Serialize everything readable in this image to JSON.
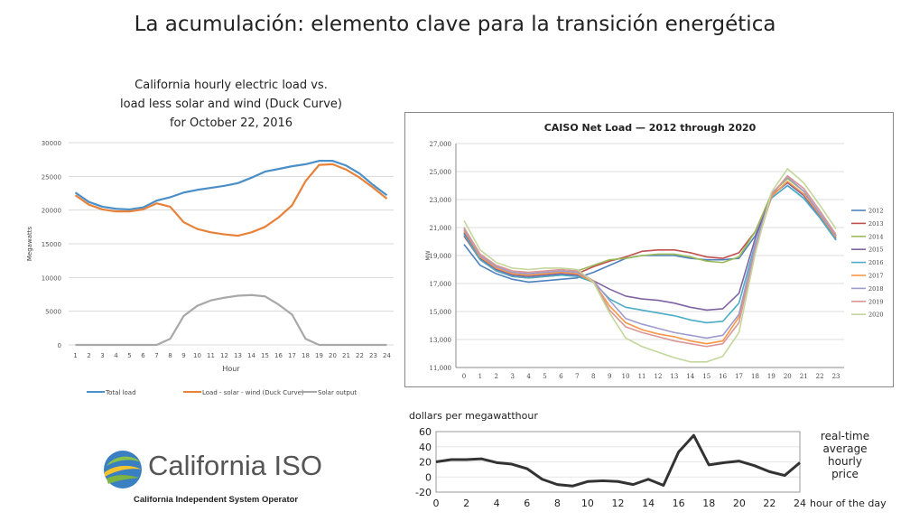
{
  "slide": {
    "title": "La acumulación: elemento clave para la transición energética"
  },
  "logo": {
    "name": "California ISO",
    "subtitle": "California Independent System Operator"
  },
  "chart_data": [
    {
      "type": "line",
      "title": [
        "California hourly electric load vs.",
        "load less solar and wind (Duck Curve)",
        "for October 22, 2016"
      ],
      "xlabel": "Hour",
      "ylabel": "Megawatts",
      "x": [
        1,
        2,
        3,
        4,
        5,
        6,
        7,
        8,
        9,
        10,
        11,
        12,
        13,
        14,
        15,
        16,
        17,
        18,
        19,
        20,
        21,
        22,
        23,
        24
      ],
      "ylim": [
        0,
        30000
      ],
      "yticks": [
        0,
        5000,
        10000,
        15000,
        20000,
        25000,
        30000
      ],
      "yticklabels": [
        "0",
        "5000",
        "10000",
        "15000",
        "20000",
        "25000",
        "30000"
      ],
      "legend_position": "bottom",
      "series": [
        {
          "name": "Total load",
          "color": "#4a8fc8",
          "values": [
            22600,
            21200,
            20500,
            20200,
            20100,
            20400,
            21400,
            21900,
            22600,
            23000,
            23300,
            23600,
            24000,
            24800,
            25700,
            26100,
            26500,
            26800,
            27300,
            27300,
            26600,
            25400,
            23700,
            22200
          ]
        },
        {
          "name": "Load - solar - wind (Duck Curve)",
          "color": "#e8823a",
          "values": [
            22200,
            20800,
            20100,
            19800,
            19800,
            20100,
            21000,
            20500,
            18200,
            17200,
            16700,
            16400,
            16200,
            16700,
            17500,
            18900,
            20700,
            24300,
            26700,
            26800,
            26000,
            24800,
            23300,
            21700
          ]
        },
        {
          "name": "Solar output",
          "color": "#a8a8a8",
          "values": [
            0,
            0,
            0,
            0,
            0,
            0,
            0,
            900,
            4300,
            5800,
            6600,
            7000,
            7300,
            7400,
            7200,
            6000,
            4500,
            900,
            0,
            0,
            0,
            0,
            0,
            0
          ]
        }
      ]
    },
    {
      "type": "line",
      "title": "CAISO Net Load — 2012 through 2020",
      "ylabel": "MW",
      "x": [
        0,
        1,
        2,
        3,
        4,
        5,
        6,
        7,
        8,
        9,
        10,
        11,
        12,
        13,
        14,
        15,
        16,
        17,
        18,
        19,
        20,
        21,
        22,
        23
      ],
      "ylim": [
        11000,
        27000
      ],
      "yticks": [
        11000,
        13000,
        15000,
        17000,
        19000,
        21000,
        23000,
        25000,
        27000
      ],
      "yticklabels": [
        "11,000",
        "13,000",
        "15,000",
        "17,000",
        "19,000",
        "21,000",
        "23,000",
        "25,000",
        "27,000"
      ],
      "legend_position": "right",
      "series": [
        {
          "name": "2012",
          "color": "#4f81bd",
          "values": [
            19800,
            18300,
            17700,
            17300,
            17100,
            17200,
            17300,
            17400,
            17800,
            18300,
            18800,
            19000,
            19000,
            19000,
            18800,
            18700,
            18700,
            18800,
            20400,
            23100,
            24000,
            23100,
            21700,
            20100
          ]
        },
        {
          "name": "2013",
          "color": "#c0504d",
          "values": [
            20400,
            18700,
            17900,
            17500,
            17400,
            17500,
            17600,
            17700,
            18200,
            18600,
            18900,
            19300,
            19400,
            19400,
            19200,
            18900,
            18800,
            19200,
            20700,
            23300,
            24200,
            23300,
            21900,
            20300
          ]
        },
        {
          "name": "2014",
          "color": "#9bbb59",
          "values": [
            20700,
            18900,
            18100,
            17700,
            17600,
            17700,
            17800,
            17900,
            18300,
            18700,
            18800,
            19000,
            19100,
            19100,
            18900,
            18600,
            18500,
            18900,
            20700,
            23400,
            24500,
            23600,
            22000,
            20400
          ]
        },
        {
          "name": "2015",
          "color": "#8064a2",
          "values": [
            20600,
            18800,
            18000,
            17600,
            17500,
            17600,
            17700,
            17600,
            17200,
            16600,
            16100,
            15900,
            15800,
            15600,
            15300,
            15100,
            15200,
            16300,
            20200,
            23300,
            24200,
            23300,
            21800,
            20200
          ]
        },
        {
          "name": "2016",
          "color": "#4bacc6",
          "values": [
            20500,
            18700,
            17900,
            17500,
            17400,
            17500,
            17600,
            17500,
            17100,
            15900,
            15300,
            15100,
            14900,
            14700,
            14400,
            14200,
            14300,
            15600,
            19800,
            23100,
            24000,
            23100,
            21700,
            20100
          ]
        },
        {
          "name": "2017",
          "color": "#f79646",
          "values": [
            20800,
            18900,
            18100,
            17700,
            17600,
            17700,
            17800,
            17700,
            17100,
            15400,
            14200,
            13700,
            13400,
            13200,
            12900,
            12700,
            12900,
            14600,
            19400,
            23200,
            24300,
            23400,
            21900,
            20300
          ]
        },
        {
          "name": "2018",
          "color": "#9c9ccf",
          "values": [
            20900,
            19000,
            18200,
            17800,
            17700,
            17800,
            17900,
            17800,
            17200,
            15800,
            14500,
            14100,
            13800,
            13500,
            13300,
            13100,
            13300,
            14800,
            19700,
            23400,
            24600,
            23600,
            22000,
            20400
          ]
        },
        {
          "name": "2019",
          "color": "#d99694",
          "values": [
            21000,
            19100,
            18300,
            17900,
            17800,
            17900,
            18000,
            17900,
            17200,
            15100,
            13900,
            13500,
            13200,
            12900,
            12700,
            12500,
            12700,
            14200,
            19300,
            23300,
            24700,
            23800,
            22200,
            20500
          ]
        },
        {
          "name": "2020",
          "color": "#c3d69b",
          "values": [
            21500,
            19400,
            18500,
            18100,
            18000,
            18100,
            18100,
            18000,
            17100,
            14900,
            13100,
            12500,
            12100,
            11700,
            11400,
            11400,
            11800,
            13500,
            19100,
            23500,
            25200,
            24200,
            22600,
            20900
          ]
        }
      ]
    },
    {
      "type": "line",
      "title": "dollars per megawatthour",
      "xlabel": "hour of the day",
      "annotation": [
        "real-time",
        "average",
        "hourly",
        "price"
      ],
      "x": [
        0,
        1,
        2,
        3,
        4,
        5,
        6,
        7,
        8,
        9,
        10,
        11,
        12,
        13,
        14,
        15,
        16,
        17,
        18,
        19,
        20,
        21,
        22,
        23,
        24
      ],
      "xticks": [
        0,
        2,
        4,
        6,
        8,
        10,
        12,
        14,
        16,
        18,
        20,
        22,
        24
      ],
      "ylim": [
        -20,
        60
      ],
      "yticks": [
        -20,
        0,
        20,
        40,
        60
      ],
      "series": [
        {
          "color": "#333333",
          "values": [
            20,
            23,
            23,
            24,
            19,
            17,
            11,
            -3,
            -10,
            -12,
            -6,
            -5,
            -6,
            -10,
            -3,
            -11,
            33,
            55,
            16,
            19,
            21,
            15,
            7,
            2,
            19
          ]
        }
      ]
    }
  ]
}
